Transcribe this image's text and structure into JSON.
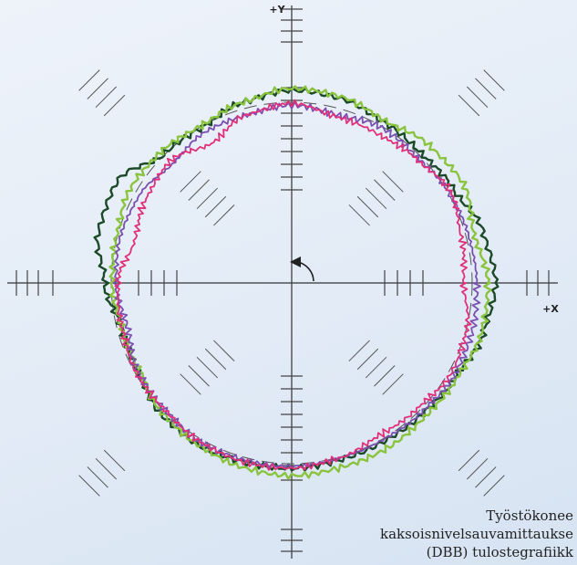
{
  "chart_data": {
    "type": "polar-line",
    "x_axis_label": "+X",
    "y_axis_label": "+Y",
    "direction": "counter-clockwise",
    "angles_deg": [
      0,
      15,
      30,
      45,
      60,
      75,
      90,
      105,
      120,
      135,
      150,
      165,
      180,
      195,
      210,
      225,
      240,
      255,
      270,
      285,
      300,
      315,
      330,
      345
    ],
    "series": [
      {
        "color": "#1c4a28",
        "radius": [
          1.09,
          1.06,
          1.0,
          0.98,
          0.99,
          1.02,
          1.03,
          1.0,
          0.96,
          0.97,
          1.08,
          1.07,
          1.0,
          0.94,
          0.95,
          0.99,
          1.0,
          0.99,
          0.99,
          0.98,
          0.98,
          0.99,
          1.01,
          1.06
        ]
      },
      {
        "color": "#8ac43f",
        "radius": [
          1.05,
          1.01,
          1.06,
          1.04,
          1.0,
          1.03,
          1.04,
          1.0,
          0.97,
          0.99,
          1.0,
          0.97,
          0.96,
          0.94,
          0.94,
          0.98,
          1.0,
          1.02,
          1.03,
          1.02,
          1.02,
          1.01,
          1.02,
          1.05
        ]
      },
      {
        "color": "#7a4fb0",
        "radius": [
          0.99,
          0.98,
          0.97,
          0.95,
          0.96,
          0.93,
          0.95,
          0.93,
          0.93,
          0.9,
          0.94,
          0.95,
          0.94,
          0.91,
          0.95,
          0.96,
          0.98,
          0.98,
          0.98,
          0.97,
          0.97,
          0.98,
          1.0,
          1.0
        ]
      },
      {
        "color": "#e0307a",
        "radius": [
          0.92,
          0.94,
          0.98,
          0.94,
          0.92,
          0.92,
          0.96,
          0.93,
          0.86,
          0.92,
          0.9,
          0.87,
          0.93,
          0.94,
          0.96,
          0.96,
          0.98,
          0.99,
          0.99,
          0.97,
          0.94,
          0.95,
          0.98,
          0.97
        ]
      }
    ]
  },
  "caption": {
    "line1": "Työstökonee",
    "line2": "kaksoisnivelsauvamittaukse",
    "line3": "(DBB) tulostegrafiikk"
  }
}
